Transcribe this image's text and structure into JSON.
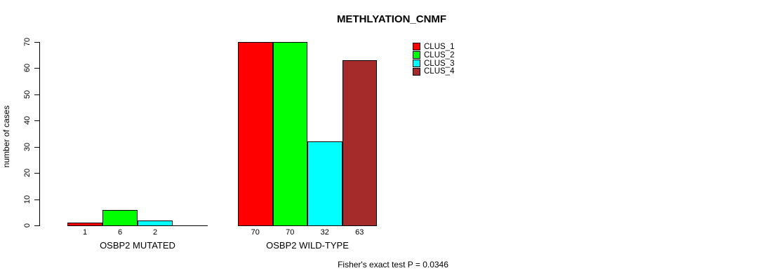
{
  "chart_data": {
    "type": "bar",
    "title": "METHLYATION_CNMF",
    "ylabel": "number of cases",
    "xlabel": "",
    "ylim": [
      0,
      70
    ],
    "yticks": [
      0,
      10,
      20,
      30,
      40,
      50,
      60,
      70
    ],
    "categories": [
      "OSBP2 MUTATED",
      "OSBP2 WILD-TYPE"
    ],
    "series": [
      {
        "name": "CLUS_1",
        "color": "#FF0000",
        "values": [
          1,
          70
        ]
      },
      {
        "name": "CLUS_2",
        "color": "#00FF00",
        "values": [
          6,
          70
        ]
      },
      {
        "name": "CLUS_3",
        "color": "#00FFFF",
        "values": [
          2,
          32
        ]
      },
      {
        "name": "CLUS_4",
        "color": "#A52A2A",
        "values": [
          0,
          63
        ]
      }
    ],
    "bar_value_labels": [
      [
        "1",
        "6",
        "2",
        ""
      ],
      [
        "70",
        "70",
        "32",
        "63"
      ]
    ],
    "legend_position": "top-right",
    "grid": false,
    "annotation": "Fisher's exact test P = 0.0346"
  }
}
